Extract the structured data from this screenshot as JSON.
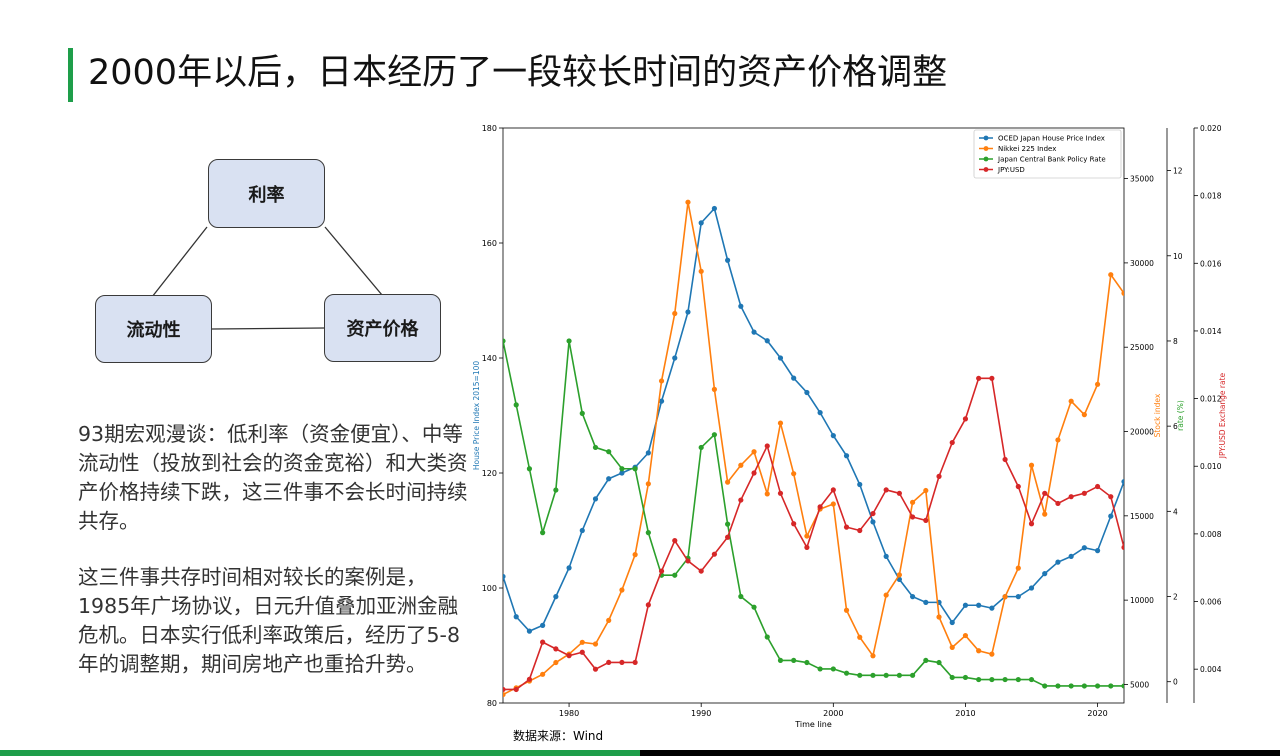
{
  "slide": {
    "title": "2000年以后，日本经历了一段较长时间的资产价格调整",
    "diagram": {
      "top": "利率",
      "left": "流动性",
      "right": "资产价格"
    },
    "para1": "93期宏观漫谈：低利率（资金便宜）、中等流动性（投放到社会的资金宽裕）和大类资产价格持续下跌，这三件事不会长时间持续共存。",
    "para2": "这三件事共存时间相对较长的案例是，1985年广场协议，日元升值叠加亚洲金融危机。日本实行低利率政策后，经历了5-8年的调整期，期间房地产也重拾升势。",
    "source": "数据来源：Wind",
    "accent_color": "#1e9e4a"
  },
  "chart_data": {
    "type": "line",
    "xlabel": "Time line",
    "x_ticks": [
      1980,
      1990,
      2000,
      2010,
      2020
    ],
    "xlim": [
      1975,
      2022
    ],
    "legend_position": "top-right",
    "axes": {
      "hpi": {
        "label": "House Price Index 2015=100",
        "ylim": [
          80,
          180
        ],
        "ticks": [
          80,
          100,
          120,
          140,
          160,
          180
        ],
        "color": "#1f77b4"
      },
      "stock": {
        "label": "Stock index",
        "ylim": [
          3900,
          38000
        ],
        "ticks": [
          5000,
          10000,
          15000,
          20000,
          25000,
          30000,
          35000
        ],
        "color": "#ff7f0e"
      },
      "rate": {
        "label": "rate (%)",
        "ylim": [
          -0.5,
          13
        ],
        "ticks": [
          0,
          2,
          4,
          6,
          8,
          10,
          12
        ],
        "color": "#2ca02c"
      },
      "fx": {
        "label": "JPY:USD Exchange rate",
        "ylim": [
          0.003,
          0.02
        ],
        "ticks": [
          0.004,
          0.006,
          0.008,
          0.01,
          0.012,
          0.014,
          0.016,
          0.018,
          0.02
        ],
        "color": "#d62728"
      }
    },
    "series": [
      {
        "name": "OCED Japan House Price Index",
        "axis": "hpi",
        "color": "#1f77b4",
        "x": [
          1975,
          1976,
          1977,
          1978,
          1979,
          1980,
          1981,
          1982,
          1983,
          1984,
          1985,
          1986,
          1987,
          1988,
          1989,
          1990,
          1991,
          1992,
          1993,
          1994,
          1995,
          1996,
          1997,
          1998,
          1999,
          2000,
          2001,
          2002,
          2003,
          2004,
          2005,
          2006,
          2007,
          2008,
          2009,
          2010,
          2011,
          2012,
          2013,
          2014,
          2015,
          2016,
          2017,
          2018,
          2019,
          2020,
          2021,
          2022
        ],
        "y": [
          102,
          95,
          92.5,
          93.5,
          98.5,
          103.5,
          110,
          115.5,
          119,
          120,
          121,
          123.5,
          132.5,
          140,
          148,
          163.5,
          166,
          157,
          149,
          144.5,
          143,
          140,
          136.5,
          134,
          130.5,
          126.5,
          123,
          118,
          111.5,
          105.5,
          101.5,
          98.5,
          97.5,
          97.5,
          94,
          97,
          97,
          96.5,
          98.5,
          98.5,
          100,
          102.5,
          104.5,
          105.5,
          107,
          106.5,
          112.5,
          118.5
        ]
      },
      {
        "name": "Nikkei 225 Index",
        "axis": "stock",
        "color": "#ff7f0e",
        "x": [
          1975,
          1976,
          1977,
          1978,
          1979,
          1980,
          1981,
          1982,
          1983,
          1984,
          1985,
          1986,
          1987,
          1988,
          1989,
          1990,
          1991,
          1992,
          1993,
          1994,
          1995,
          1996,
          1997,
          1998,
          1999,
          2000,
          2001,
          2002,
          2003,
          2004,
          2005,
          2006,
          2007,
          2008,
          2009,
          2010,
          2011,
          2012,
          2013,
          2014,
          2015,
          2016,
          2017,
          2018,
          2019,
          2020,
          2021,
          2022
        ],
        "y": [
          4400,
          4800,
          5200,
          5600,
          6300,
          6800,
          7500,
          7400,
          8800,
          10600,
          12700,
          16900,
          23000,
          27000,
          33600,
          29500,
          22500,
          17000,
          18000,
          18800,
          16300,
          20500,
          17500,
          13800,
          15400,
          15700,
          9400,
          7800,
          6700,
          10300,
          11500,
          15800,
          16500,
          9000,
          7200,
          7900,
          7000,
          6800,
          10200,
          11900,
          18000,
          15100,
          19500,
          21800,
          21000,
          22800,
          29300,
          28200
        ]
      },
      {
        "name": "Japan Central Bank Policy Rate",
        "axis": "rate",
        "color": "#2ca02c",
        "x": [
          1975,
          1976,
          1977,
          1978,
          1979,
          1980,
          1981,
          1982,
          1983,
          1984,
          1985,
          1986,
          1987,
          1988,
          1989,
          1990,
          1991,
          1992,
          1993,
          1994,
          1995,
          1996,
          1997,
          1998,
          1999,
          2000,
          2001,
          2002,
          2003,
          2004,
          2005,
          2006,
          2007,
          2008,
          2009,
          2010,
          2011,
          2012,
          2013,
          2014,
          2015,
          2016,
          2017,
          2018,
          2019,
          2020,
          2021,
          2022
        ],
        "y": [
          8,
          6.5,
          5,
          3.5,
          4.5,
          8,
          6.3,
          5.5,
          5.4,
          5,
          5,
          3.5,
          2.5,
          2.5,
          2.9,
          5.5,
          5.8,
          3.7,
          2,
          1.75,
          1.05,
          0.5,
          0.5,
          0.45,
          0.3,
          0.3,
          0.2,
          0.15,
          0.15,
          0.15,
          0.15,
          0.15,
          0.5,
          0.45,
          0.1,
          0.1,
          0.05,
          0.05,
          0.05,
          0.05,
          0.05,
          -0.1,
          -0.1,
          -0.1,
          -0.1,
          -0.1,
          -0.1,
          -0.1
        ]
      },
      {
        "name": "JPY:USD",
        "axis": "fx",
        "color": "#d62728",
        "x": [
          1975,
          1976,
          1977,
          1978,
          1979,
          1980,
          1981,
          1982,
          1983,
          1984,
          1985,
          1986,
          1987,
          1988,
          1989,
          1990,
          1991,
          1992,
          1993,
          1994,
          1995,
          1996,
          1997,
          1998,
          1999,
          2000,
          2001,
          2002,
          2003,
          2004,
          2005,
          2006,
          2007,
          2008,
          2009,
          2010,
          2011,
          2012,
          2013,
          2014,
          2015,
          2016,
          2017,
          2018,
          2019,
          2020,
          2021,
          2022
        ],
        "y": [
          0.0034,
          0.0034,
          0.0037,
          0.0048,
          0.0046,
          0.0044,
          0.0045,
          0.004,
          0.0042,
          0.0042,
          0.0042,
          0.0059,
          0.0069,
          0.0078,
          0.0072,
          0.0069,
          0.0074,
          0.0079,
          0.009,
          0.0098,
          0.0106,
          0.0092,
          0.0083,
          0.0076,
          0.0088,
          0.0093,
          0.0082,
          0.0081,
          0.0086,
          0.0093,
          0.0092,
          0.0085,
          0.0084,
          0.0097,
          0.0107,
          0.0114,
          0.0126,
          0.0126,
          0.0102,
          0.0094,
          0.0083,
          0.0092,
          0.0089,
          0.0091,
          0.0092,
          0.0094,
          0.0091,
          0.0076
        ]
      }
    ]
  }
}
